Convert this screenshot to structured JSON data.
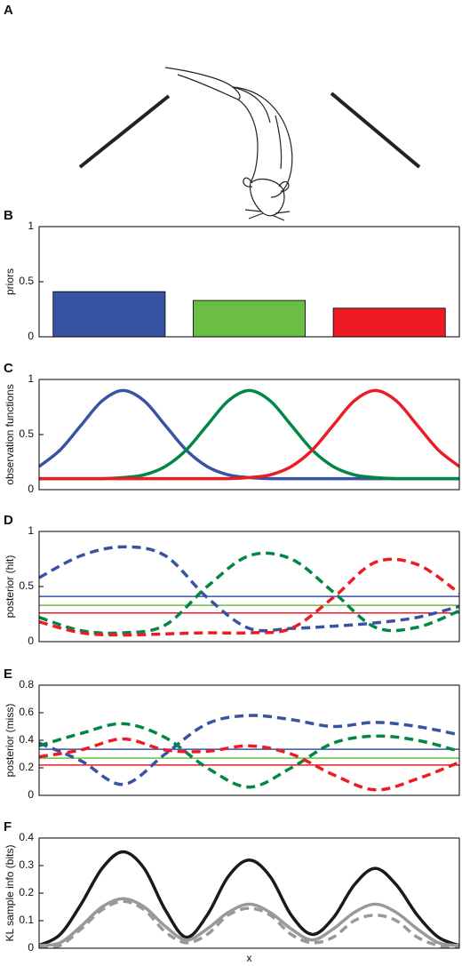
{
  "illustration": {
    "label": "A"
  },
  "chart_data": [
    {
      "type": "bar",
      "label": "B",
      "ylabel": "priors",
      "categories": [
        null,
        null,
        null
      ],
      "values": [
        0.41,
        0.33,
        0.26
      ],
      "colors": [
        "#3953a4",
        "#6abd45",
        "#ed1c24"
      ],
      "ylim": [
        0,
        1
      ],
      "yticks": [
        0,
        0.5,
        1
      ]
    },
    {
      "type": "line",
      "label": "C",
      "ylabel": "observation functions",
      "x": [
        0,
        0.05,
        0.1,
        0.15,
        0.2,
        0.25,
        0.3,
        0.35,
        0.4,
        0.45,
        0.5,
        0.55,
        0.6,
        0.65,
        0.7,
        0.75,
        0.8,
        0.85,
        0.9,
        0.95,
        1
      ],
      "series": [
        {
          "color": "#3953a4",
          "dashed": false,
          "values": [
            0.21,
            0.36,
            0.585,
            0.806,
            0.9,
            0.806,
            0.585,
            0.36,
            0.21,
            0.135,
            0.11,
            0.1,
            0.1,
            0.1,
            0.1,
            0.1,
            0.1,
            0.1,
            0.1,
            0.1,
            0.1
          ]
        },
        {
          "color": "#008744",
          "dashed": false,
          "values": [
            0.1,
            0.1,
            0.1,
            0.1,
            0.11,
            0.135,
            0.21,
            0.36,
            0.585,
            0.806,
            0.9,
            0.806,
            0.585,
            0.36,
            0.21,
            0.135,
            0.11,
            0.1,
            0.1,
            0.1,
            0.1
          ]
        },
        {
          "color": "#ed1c24",
          "dashed": false,
          "values": [
            0.1,
            0.1,
            0.1,
            0.1,
            0.1,
            0.1,
            0.1,
            0.1,
            0.1,
            0.1,
            0.11,
            0.135,
            0.21,
            0.36,
            0.585,
            0.806,
            0.9,
            0.806,
            0.585,
            0.36,
            0.21
          ]
        }
      ],
      "xlim": [
        0,
        1
      ],
      "ylim": [
        0,
        1
      ],
      "yticks": [
        0,
        0.5,
        1
      ]
    },
    {
      "type": "line",
      "label": "D",
      "ylabel": "posterior (hit)",
      "x": [
        0,
        0.1,
        0.2,
        0.3,
        0.4,
        0.5,
        0.6,
        0.7,
        0.8,
        0.9,
        1
      ],
      "series": [
        {
          "color": "#3953a4",
          "dashed": true,
          "values": [
            0.58,
            0.78,
            0.86,
            0.78,
            0.4,
            0.12,
            0.12,
            0.14,
            0.17,
            0.22,
            0.32
          ]
        },
        {
          "color": "#008744",
          "dashed": true,
          "values": [
            0.22,
            0.1,
            0.08,
            0.15,
            0.5,
            0.78,
            0.75,
            0.45,
            0.13,
            0.13,
            0.28
          ]
        },
        {
          "color": "#ed1c24",
          "dashed": true,
          "values": [
            0.18,
            0.08,
            0.06,
            0.07,
            0.08,
            0.08,
            0.12,
            0.4,
            0.72,
            0.7,
            0.44
          ]
        }
      ],
      "reference_lines": [
        {
          "value": 0.41,
          "color": "#3953a4"
        },
        {
          "value": 0.33,
          "color": "#6abd45"
        },
        {
          "value": 0.26,
          "color": "#ed1c24"
        }
      ],
      "xlim": [
        0,
        1
      ],
      "ylim": [
        0,
        1
      ],
      "yticks": [
        0,
        0.5,
        1
      ]
    },
    {
      "type": "line",
      "label": "E",
      "ylabel": "posterior (miss)",
      "x": [
        0,
        0.1,
        0.2,
        0.3,
        0.4,
        0.5,
        0.6,
        0.7,
        0.8,
        0.9,
        1
      ],
      "series": [
        {
          "color": "#3953a4",
          "dashed": true,
          "values": [
            0.38,
            0.25,
            0.08,
            0.3,
            0.52,
            0.58,
            0.55,
            0.5,
            0.53,
            0.5,
            0.44
          ]
        },
        {
          "color": "#008744",
          "dashed": true,
          "values": [
            0.36,
            0.45,
            0.52,
            0.42,
            0.2,
            0.06,
            0.2,
            0.38,
            0.43,
            0.4,
            0.32
          ]
        },
        {
          "color": "#ed1c24",
          "dashed": true,
          "values": [
            0.28,
            0.33,
            0.41,
            0.33,
            0.32,
            0.36,
            0.3,
            0.15,
            0.04,
            0.12,
            0.24
          ]
        }
      ],
      "reference_lines": [
        {
          "value": 0.335,
          "color": "#3953a4"
        },
        {
          "value": 0.27,
          "color": "#6abd45"
        },
        {
          "value": 0.22,
          "color": "#ed1c24"
        }
      ],
      "xlim": [
        0,
        1
      ],
      "ylim": [
        0,
        0.8
      ],
      "yticks": [
        0,
        0.2,
        0.4,
        0.6,
        0.8
      ]
    },
    {
      "type": "line",
      "label": "F",
      "ylabel": "KL sample info (bits)",
      "xlabel": "x",
      "x": [
        0,
        0.05,
        0.1,
        0.15,
        0.2,
        0.25,
        0.3,
        0.35,
        0.4,
        0.45,
        0.5,
        0.55,
        0.6,
        0.65,
        0.7,
        0.75,
        0.8,
        0.85,
        0.9,
        0.95,
        1
      ],
      "series": [
        {
          "color": "#1a1a1a",
          "dashed": false,
          "values": [
            0.01,
            0.05,
            0.16,
            0.29,
            0.35,
            0.29,
            0.14,
            0.04,
            0.12,
            0.26,
            0.32,
            0.26,
            0.12,
            0.05,
            0.11,
            0.23,
            0.29,
            0.23,
            0.12,
            0.04,
            0.01
          ]
        },
        {
          "color": "#999999",
          "dashed": false,
          "values": [
            0.01,
            0.02,
            0.08,
            0.15,
            0.18,
            0.15,
            0.08,
            0.03,
            0.07,
            0.13,
            0.16,
            0.13,
            0.07,
            0.03,
            0.07,
            0.13,
            0.16,
            0.13,
            0.07,
            0.02,
            0.01
          ]
        },
        {
          "color": "#999999",
          "dashed": true,
          "values": [
            0,
            0.01,
            0.07,
            0.14,
            0.17,
            0.14,
            0.06,
            0.02,
            0.05,
            0.12,
            0.145,
            0.12,
            0.05,
            0.02,
            0.04,
            0.1,
            0.12,
            0.1,
            0.04,
            0.01,
            0
          ]
        }
      ],
      "xlim": [
        0,
        1
      ],
      "ylim": [
        0,
        0.4
      ],
      "yticks": [
        0,
        0.1,
        0.2,
        0.3,
        0.4
      ]
    }
  ]
}
